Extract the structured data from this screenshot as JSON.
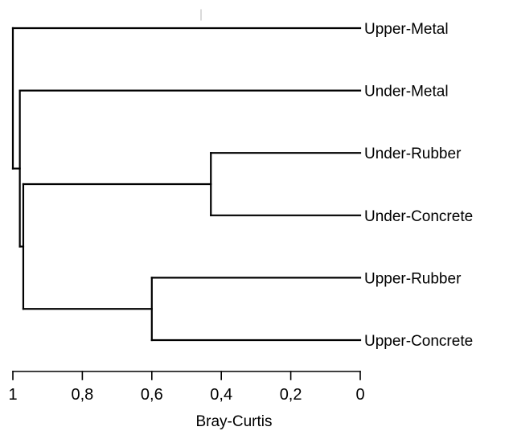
{
  "chart_data": {
    "type": "dendrogram",
    "xlabel": "Bray-Curtis",
    "xlim": [
      1,
      0
    ],
    "x_direction": "descending-left-to-right",
    "ticks": [
      {
        "value": 1,
        "label": "1"
      },
      {
        "value": 0.8,
        "label": "0,8"
      },
      {
        "value": 0.6,
        "label": "0,6"
      },
      {
        "value": 0.4,
        "label": "0,4"
      },
      {
        "value": 0.2,
        "label": "0,2"
      },
      {
        "value": 0,
        "label": "0"
      }
    ],
    "leaves": [
      "Upper-Metal",
      "Under-Metal",
      "Under-Rubber",
      "Under-Concrete",
      "Upper-Rubber",
      "Upper-Concrete"
    ],
    "merges": [
      {
        "id": "c1",
        "children": [
          "Under-Rubber",
          "Under-Concrete"
        ],
        "height": 0.43
      },
      {
        "id": "c2",
        "children": [
          "Upper-Rubber",
          "Upper-Concrete"
        ],
        "height": 0.6
      },
      {
        "id": "c3",
        "children": [
          "c1",
          "c2"
        ],
        "height": 0.97
      },
      {
        "id": "c4",
        "children": [
          "Under-Metal",
          "c3"
        ],
        "height": 0.98
      },
      {
        "id": "c5",
        "children": [
          "Upper-Metal",
          "c4"
        ],
        "height": 1.0
      }
    ],
    "grid": false,
    "legend": "none"
  },
  "colors": {
    "line": "#000000",
    "background": "#ffffff"
  }
}
